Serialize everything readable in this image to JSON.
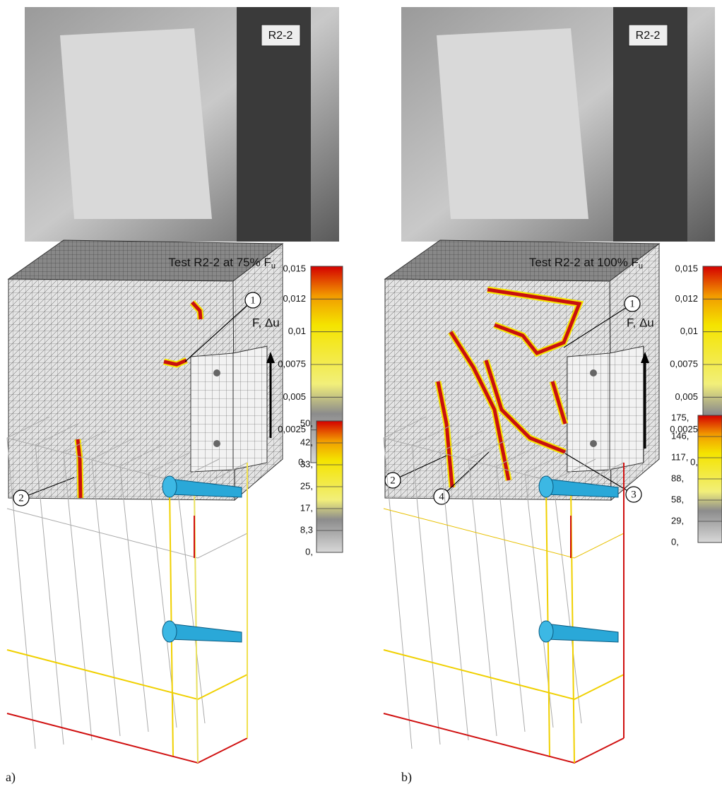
{
  "panels": [
    {
      "label": "a)",
      "photo_tag": "R2-2",
      "title": {
        "text": "Test R2-2 at 75% F",
        "sub": "u"
      },
      "force_label": "F, Δu",
      "crack_scale": [
        "0,015",
        "0,012",
        "0,01",
        "0,0075",
        "0,005",
        "0,0025",
        "0,"
      ],
      "markers": [
        "1",
        "2"
      ],
      "rebar_scale": [
        "50,",
        "42,",
        "33,",
        "25,",
        "17,",
        "8,3",
        "0,"
      ]
    },
    {
      "label": "b)",
      "photo_tag": "R2-2",
      "title": {
        "text": "Test R2-2 at 100% F",
        "sub": "u"
      },
      "force_label": "F, Δu",
      "crack_scale": [
        "0,015",
        "0,012",
        "0,01",
        "0,0075",
        "0,005",
        "0,0025",
        "0,"
      ],
      "markers": [
        "1",
        "2",
        "3",
        "4"
      ],
      "rebar_scale": [
        "175,",
        "146,",
        "117,",
        "88,",
        "58,",
        "29,",
        "0,"
      ]
    }
  ]
}
